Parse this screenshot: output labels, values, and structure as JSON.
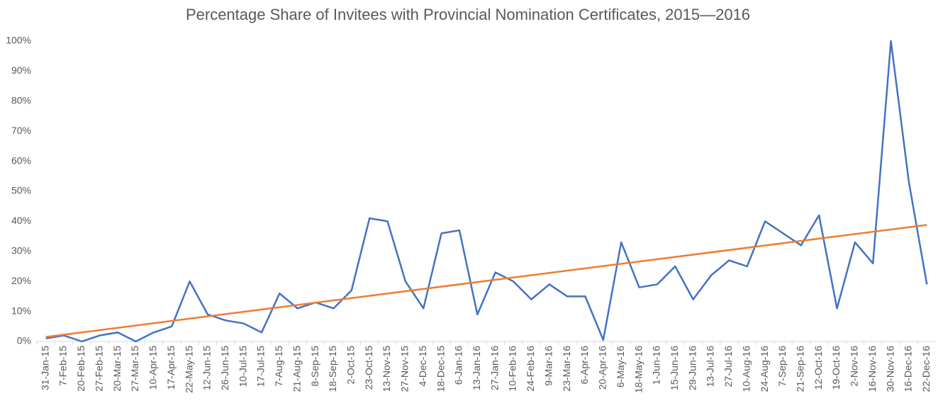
{
  "chart_data": {
    "type": "line",
    "title": "Percentage Share of Invitees with Provincial Nomination Certificates, 2015—2016",
    "categories": [
      "31-Jan-15",
      "7-Feb-15",
      "20-Feb-15",
      "27-Feb-15",
      "20-Mar-15",
      "27-Mar-15",
      "10-Apr-15",
      "17-Apr-15",
      "22-May-15",
      "12-Jun-15",
      "26-Jun-15",
      "10-Jul-15",
      "17-Jul-15",
      "7-Aug-15",
      "21-Aug-15",
      "8-Sep-15",
      "18-Sep-15",
      "2-Oct-15",
      "23-Oct-15",
      "13-Nov-15",
      "27-Nov-15",
      "4-Dec-15",
      "18-Dec-15",
      "6-Jan-16",
      "13-Jan-16",
      "27-Jan-16",
      "10-Feb-16",
      "24-Feb-16",
      "9-Mar-16",
      "23-Mar-16",
      "6-Apr-16",
      "20-Apr-16",
      "6-May-16",
      "18-May-16",
      "1-Jun-16",
      "15-Jun-16",
      "29-Jun-16",
      "13-Jul-16",
      "27-Jul-16",
      "10-Aug-16",
      "24-Aug-16",
      "7-Sep-16",
      "21-Sep-16",
      "12-Oct-16",
      "19-Oct-16",
      "2-Nov-16",
      "16-Nov-16",
      "30-Nov-16",
      "16-Dec-16",
      "22-Dec-16"
    ],
    "values": [
      1,
      2,
      0,
      2,
      3,
      0,
      3,
      5,
      20,
      9,
      7,
      6,
      3,
      16,
      11,
      13,
      11,
      17,
      41,
      40,
      20,
      11,
      36,
      37,
      9,
      23,
      20,
      14,
      19,
      15,
      15,
      0.5,
      33,
      18,
      19,
      25,
      14,
      22,
      27,
      25,
      40,
      36,
      32,
      42,
      11,
      33,
      26,
      100,
      53,
      19
    ],
    "color": "#4472c4",
    "trendline": {
      "color": "#ed7d31",
      "values": [
        1.5,
        38.8
      ]
    },
    "ylim": [
      0,
      100
    ],
    "yticks": [
      {
        "value": 0,
        "label": "0%"
      },
      {
        "value": 10,
        "label": "10%"
      },
      {
        "value": 20,
        "label": "20%"
      },
      {
        "value": 30,
        "label": "30%"
      },
      {
        "value": 40,
        "label": "40%"
      },
      {
        "value": 50,
        "label": "50%"
      },
      {
        "value": 60,
        "label": "60%"
      },
      {
        "value": 70,
        "label": "70%"
      },
      {
        "value": 80,
        "label": "80%"
      },
      {
        "value": 90,
        "label": "90%"
      },
      {
        "value": 100,
        "label": "100%"
      }
    ],
    "grid": false
  }
}
